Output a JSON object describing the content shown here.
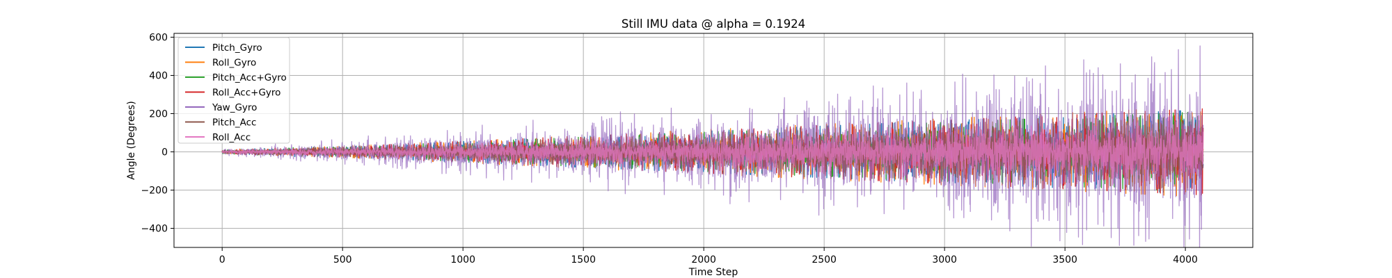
{
  "chart_data": {
    "type": "line",
    "title": "Still IMU data @ alpha = 0.1924",
    "xlabel": "Time Step",
    "ylabel": "Angle (Degrees)",
    "xlim": [
      -200,
      4280
    ],
    "ylim": [
      -500,
      620
    ],
    "xticks": [
      0,
      500,
      1000,
      1500,
      2000,
      2500,
      3000,
      3500,
      4000
    ],
    "yticks": [
      -400,
      -200,
      0,
      200,
      400,
      600
    ],
    "xtick_labels": [
      "0",
      "500",
      "1000",
      "1500",
      "2000",
      "2500",
      "3000",
      "3500",
      "4000"
    ],
    "ytick_labels": [
      "−400",
      "−200",
      "0",
      "200",
      "400",
      "600"
    ],
    "grid": true,
    "legend_position": "top-left",
    "n_points": 4075,
    "series": [
      {
        "name": "Pitch_Gyro",
        "color": "#1f77b4",
        "alpha": 1.0,
        "amplitude_start": 8,
        "amplitude_end": 180,
        "spike_max": 210
      },
      {
        "name": "Roll_Gyro",
        "color": "#ff7f0e",
        "alpha": 1.0,
        "amplitude_start": 8,
        "amplitude_end": 190,
        "spike_max": 225
      },
      {
        "name": "Pitch_Acc+Gyro",
        "color": "#2ca02c",
        "alpha": 1.0,
        "amplitude_start": 8,
        "amplitude_end": 170,
        "spike_max": 200
      },
      {
        "name": "Roll_Acc+Gyro",
        "color": "#d62728",
        "alpha": 1.0,
        "amplitude_start": 8,
        "amplitude_end": 185,
        "spike_max": 215
      },
      {
        "name": "Yaw_Gyro",
        "color": "#9467bd",
        "alpha": 0.7,
        "amplitude_start": 15,
        "amplitude_end": 380,
        "spike_max": 570
      },
      {
        "name": "Pitch_Acc",
        "color": "#8c564b",
        "alpha": 0.7,
        "amplitude_start": 8,
        "amplitude_end": 160,
        "spike_max": 190
      },
      {
        "name": "Roll_Acc",
        "color": "#e377c2",
        "alpha": 0.75,
        "amplitude_start": 8,
        "amplitude_end": 150,
        "spike_max": 180
      }
    ]
  }
}
